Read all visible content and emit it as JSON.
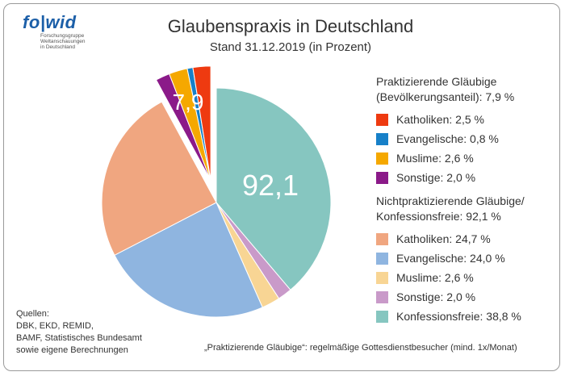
{
  "logo": {
    "text": "fowid",
    "fo": "fo",
    "sep": "|",
    "wid": "wid",
    "subtitle_lines": [
      "Forschungsgruppe",
      "Weltanschauungen",
      "in Deutschland"
    ]
  },
  "title": "Glaubenspraxis in Deutschland",
  "subtitle": "Stand 31.12.2019 (in Prozent)",
  "chart_data": {
    "type": "pie",
    "exploded_group": {
      "label": "7,9",
      "value": 7.9
    },
    "main_group_label": "92,1",
    "slices": [
      {
        "name": "Konfessionsfreie",
        "value": 38.8,
        "color": "#86c6c0",
        "exploded": false
      },
      {
        "name": "Sonstige",
        "value": 2.0,
        "color": "#c99ac9",
        "exploded": false
      },
      {
        "name": "Muslime",
        "value": 2.6,
        "color": "#f8d594",
        "exploded": false
      },
      {
        "name": "Evangelische",
        "value": 24.0,
        "color": "#8fb5e0",
        "exploded": false
      },
      {
        "name": "Katholiken",
        "value": 24.7,
        "color": "#f0a680",
        "exploded": false
      },
      {
        "name": "Sonstige",
        "value": 2.0,
        "color": "#8b1a89",
        "exploded": true
      },
      {
        "name": "Muslime",
        "value": 2.6,
        "color": "#f5a800",
        "exploded": true
      },
      {
        "name": "Evangelische",
        "value": 0.8,
        "color": "#1780c8",
        "exploded": true
      },
      {
        "name": "Katholiken",
        "value": 2.5,
        "color": "#ee3a10",
        "exploded": true
      }
    ]
  },
  "legend": {
    "group1": {
      "heading_line1": "Praktizierende Gläubige",
      "heading_line2": "(Bevölkerungsanteil):  7,9 %",
      "items": [
        {
          "label": "Katholiken:  2,5 %",
          "color": "#ee3a10"
        },
        {
          "label": "Evangelische:  0,8 %",
          "color": "#1780c8"
        },
        {
          "label": "Muslime:  2,6 %",
          "color": "#f5a800"
        },
        {
          "label": "Sonstige:  2,0 %",
          "color": "#8b1a89"
        }
      ]
    },
    "group2": {
      "heading_line1": "Nichtpraktizierende Gläubige/",
      "heading_line2": "Konfessionsfreie:  92,1 %",
      "items": [
        {
          "label": "Katholiken:  24,7 %",
          "color": "#f0a680"
        },
        {
          "label": "Evangelische:  24,0 %",
          "color": "#8fb5e0"
        },
        {
          "label": "Muslime:  2,6 %",
          "color": "#f8d594"
        },
        {
          "label": "Sonstige:  2,0 %",
          "color": "#c99ac9"
        },
        {
          "label": "Konfessionsfreie:  38,8 %",
          "color": "#86c6c0"
        }
      ]
    }
  },
  "sources": {
    "lines": [
      "Quellen:",
      "DBK, EKD, REMID,",
      "BAMF, Statistisches Bundesamt",
      "sowie eigene Berechnungen"
    ]
  },
  "footnote": "„Praktizierende Gläubige“: regelmäßige Gottesdienstbesucher (mind. 1x/Monat)"
}
